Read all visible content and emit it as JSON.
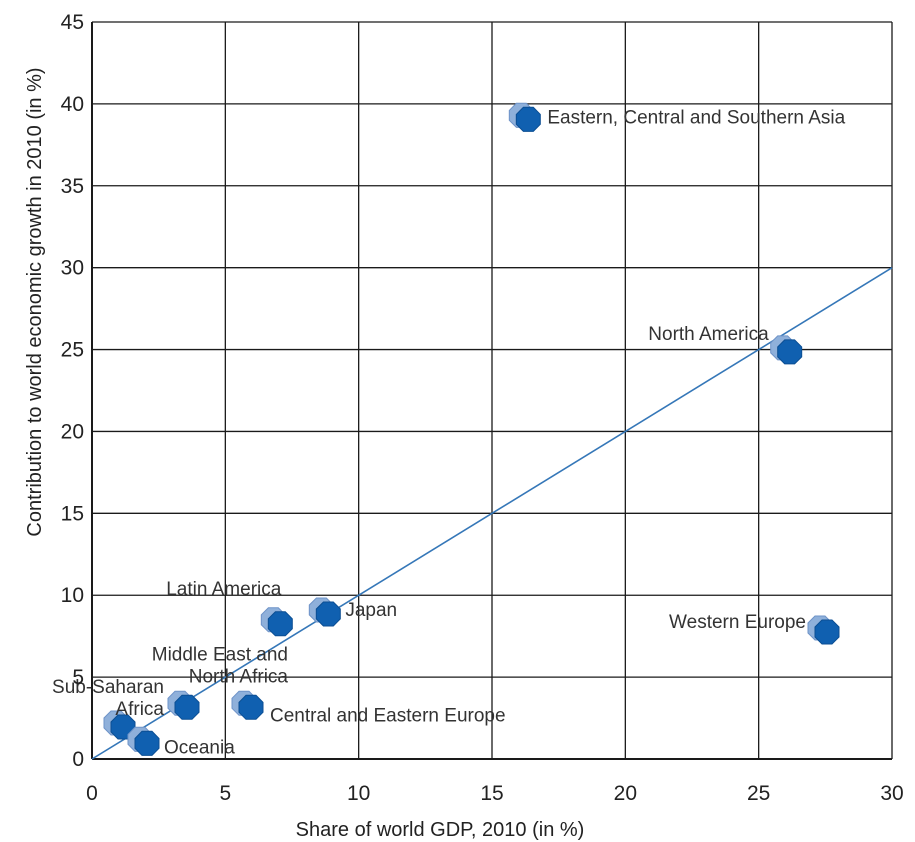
{
  "chart_data": {
    "type": "scatter",
    "title": "",
    "xlabel": "Share of world GDP, 2010 (in %)",
    "ylabel": "Contribution to world economic growth in 2010 (in %)",
    "xlim": [
      0,
      30
    ],
    "ylim": [
      0,
      45
    ],
    "xticks": [
      0,
      5,
      10,
      15,
      20,
      25,
      30
    ],
    "yticks": [
      0,
      5,
      10,
      15,
      20,
      25,
      30,
      35,
      40,
      45
    ],
    "grid": true,
    "trendline": {
      "from": [
        0,
        0
      ],
      "to": [
        30,
        30
      ]
    },
    "colors": {
      "marker": "#1060B0",
      "marker_shadow": "#8FB0DA",
      "line": "#3577B8",
      "grid": "#1a1a1a"
    },
    "points": [
      {
        "name": "Eastern, Central and Southern Asia",
        "label_lines": [
          "Eastern, Central and Southern Asia"
        ],
        "x": 16.1,
        "y": 39.3
      },
      {
        "name": "North America",
        "label_lines": [
          "North America"
        ],
        "x": 25.9,
        "y": 25.1
      },
      {
        "name": "Western Europe",
        "label_lines": [
          "Western Europe"
        ],
        "x": 27.3,
        "y": 8.0
      },
      {
        "name": "Japan",
        "label_lines": [
          "Japan"
        ],
        "x": 8.6,
        "y": 9.1
      },
      {
        "name": "Latin America",
        "label_lines": [
          "Latin America"
        ],
        "x": 6.8,
        "y": 8.5
      },
      {
        "name": "Middle East and North Africa",
        "label_lines": [
          "Middle East and",
          "North Africa"
        ],
        "x": 3.3,
        "y": 3.4
      },
      {
        "name": "Central and Eastern Europe",
        "label_lines": [
          "Central and Eastern Europe"
        ],
        "x": 5.7,
        "y": 3.4
      },
      {
        "name": "Sub-Saharan Africa",
        "label_lines": [
          "Sub-Saharan",
          "Africa"
        ],
        "x": 0.9,
        "y": 2.2
      },
      {
        "name": "Oceania",
        "label_lines": [
          "Oceania"
        ],
        "x": 1.8,
        "y": 1.2
      }
    ]
  }
}
